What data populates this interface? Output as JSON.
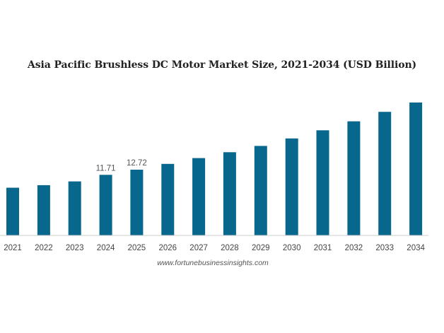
{
  "chart_data": {
    "type": "bar",
    "title": "Asia Pacific Brushless DC Motor Market Size, 2021-2034 (USD Billion)",
    "xlabel": "",
    "ylabel": "",
    "categories": [
      "2021",
      "2022",
      "2023",
      "2024",
      "2025",
      "2026",
      "2027",
      "2028",
      "2029",
      "2030",
      "2031",
      "2032",
      "2033",
      "2034"
    ],
    "values": [
      9.23,
      9.72,
      10.45,
      11.71,
      12.72,
      13.83,
      14.95,
      16.09,
      17.31,
      18.75,
      20.33,
      22.07,
      23.9,
      25.7
    ],
    "data_labels": {
      "3": "11.71",
      "4": "12.72"
    },
    "ylim": [
      0,
      26
    ],
    "color": "#08678d",
    "source": "www.fortunebusinessinsights.com"
  }
}
